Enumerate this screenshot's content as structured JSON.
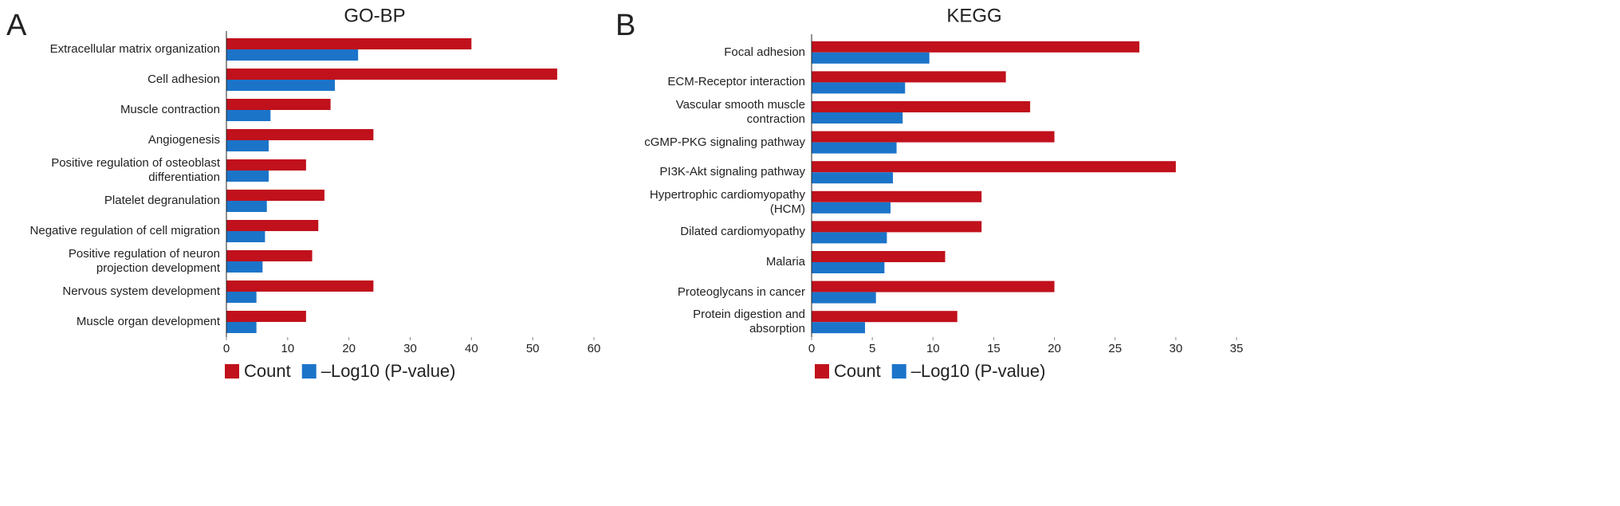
{
  "chart_data": [
    {
      "type": "bar",
      "orientation": "horizontal",
      "panel": "A",
      "title": "GO-BP",
      "categories": [
        "Extracellular matrix organization",
        "Cell adhesion",
        "Muscle contraction",
        "Angiogenesis",
        "Positive regulation of osteoblast\ndifferentiation",
        "Platelet degranulation",
        "Negative regulation of cell migration",
        "Positive regulation of neuron\nprojection development",
        "Nervous system development",
        "Muscle organ development"
      ],
      "series": [
        {
          "name": "Count",
          "color": "#c0111c",
          "values": [
            40,
            54,
            17,
            24,
            13,
            16,
            15,
            14,
            24,
            13
          ]
        },
        {
          "name": "–Log10 (P-value)",
          "color": "#1c74c9",
          "values": [
            21.5,
            17.7,
            7.2,
            6.9,
            6.9,
            6.6,
            6.3,
            5.9,
            4.9,
            4.9
          ]
        }
      ],
      "xlim": [
        0,
        60
      ],
      "xticks": [
        0,
        10,
        20,
        30,
        40,
        50,
        60
      ],
      "legend": "bottom"
    },
    {
      "type": "bar",
      "orientation": "horizontal",
      "panel": "B",
      "title": "KEGG",
      "categories": [
        "Focal adhesion",
        "ECM-Receptor interaction",
        "Vascular smooth muscle\ncontraction",
        "cGMP-PKG signaling pathway",
        "PI3K-Akt signaling pathway",
        "Hypertrophic cardiomyopathy\n(HCM)",
        "Dilated cardiomyopathy",
        "Malaria",
        "Proteoglycans in cancer",
        "Protein digestion and\nabsorption"
      ],
      "series": [
        {
          "name": "Count",
          "color": "#c0111c",
          "values": [
            27,
            16,
            18,
            20,
            30,
            14,
            14,
            11,
            20,
            12
          ]
        },
        {
          "name": "–Log10 (P-value)",
          "color": "#1c74c9",
          "values": [
            9.7,
            7.7,
            7.5,
            7.0,
            6.7,
            6.5,
            6.2,
            6.0,
            5.3,
            4.4
          ]
        }
      ],
      "xlim": [
        0,
        35
      ],
      "xticks": [
        0,
        5,
        10,
        15,
        20,
        25,
        30,
        35
      ],
      "legend": "bottom"
    }
  ]
}
